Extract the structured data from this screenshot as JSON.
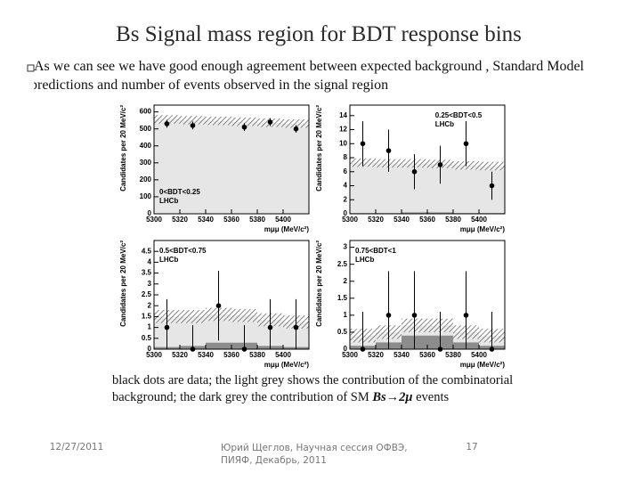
{
  "title": "Bs Signal mass region  for BDT response bins",
  "bullet": "As we can see  we have good enough agreement between expected background , Standard Model predictions and number of events observed in the signal region",
  "caption": {
    "text": "black dots are data; the light grey shows the contribution of the combinatorial background;  the dark grey  the contribution of SM ",
    "emph": "Bs→2μ",
    "end": "  events"
  },
  "footer": {
    "date": "12/27/2011",
    "author": "Юрий Щеглов, Научная сессия ОФВЭ, ПИЯФ, Декабрь, 2011",
    "page": "17"
  },
  "chart_data": [
    {
      "type": "mass",
      "label": "0<BDT<0.25",
      "experiment": "LHCb",
      "label_corner": "bottom-left",
      "x_label": "mμμ (MeV/c²)",
      "y_label": "Candidates per 20 MeV/c²",
      "x": [
        5310,
        5330,
        5350,
        5370,
        5390,
        5410
      ],
      "values": [
        530,
        520,
        null,
        510,
        540,
        500
      ],
      "errors": [
        23,
        23,
        null,
        23,
        23,
        22
      ],
      "background": [
        555,
        550,
        545,
        540,
        535,
        530
      ],
      "background_errors": [
        25,
        25,
        25,
        25,
        25,
        25
      ],
      "signal": [
        1,
        1,
        2,
        2,
        1,
        1
      ],
      "background_color": "#e6e6e6",
      "signal_color": "#8c8c8c",
      "xlim": [
        5300,
        5420
      ],
      "xticks": [
        5300,
        5320,
        5340,
        5360,
        5380,
        5400
      ],
      "ylim": [
        0,
        640
      ],
      "yticks": [
        0,
        100,
        200,
        300,
        400,
        500,
        600
      ]
    },
    {
      "type": "mass",
      "label": "0.25<BDT<0.5",
      "experiment": "LHCb",
      "label_corner": "top-right",
      "x_label": "mμμ (MeV/c²)",
      "y_label": "Candidates per 20 MeV/c²",
      "x": [
        5310,
        5330,
        5350,
        5370,
        5390,
        5410
      ],
      "values": [
        10,
        9,
        6,
        7,
        10,
        4
      ],
      "errors": [
        3.2,
        3,
        2.5,
        2.7,
        3.2,
        2
      ],
      "background": [
        7.2,
        7.1,
        7,
        6.9,
        6.8,
        6.7
      ],
      "background_errors": [
        0.6,
        0.6,
        0.6,
        0.6,
        0.6,
        0.6
      ],
      "signal": [
        0.1,
        0.1,
        0.2,
        0.2,
        0.1,
        0.1
      ],
      "background_color": "#e6e6e6",
      "signal_color": "#8c8c8c",
      "xlim": [
        5300,
        5420
      ],
      "xticks": [
        5300,
        5320,
        5340,
        5360,
        5380,
        5400
      ],
      "ylim": [
        0,
        15.5
      ],
      "yticks": [
        0,
        2,
        4,
        6,
        8,
        10,
        12,
        14
      ]
    },
    {
      "type": "mass",
      "label": "0.5<BDT<0.75",
      "experiment": "LHCb",
      "label_corner": "top-left",
      "x_label": "mμμ (MeV/c²)",
      "y_label": "Candidates per 20 MeV/c²",
      "x": [
        5310,
        5330,
        5350,
        5370,
        5390,
        5410
      ],
      "values": [
        1,
        0,
        2,
        0,
        1,
        1
      ],
      "errors": [
        1.3,
        1.1,
        1.6,
        1.1,
        1.3,
        1.3
      ],
      "background": [
        1.4,
        1.35,
        1.3,
        1.25,
        1.2,
        1.15
      ],
      "background_errors": [
        0.3,
        0.3,
        0.3,
        0.3,
        0.3,
        0.3
      ],
      "signal": [
        0.1,
        0.15,
        0.3,
        0.3,
        0.15,
        0.1
      ],
      "background_color": "#e6e6e6",
      "signal_color": "#8c8c8c",
      "xlim": [
        5300,
        5420
      ],
      "xticks": [
        5300,
        5320,
        5340,
        5360,
        5380,
        5400
      ],
      "ylim": [
        0,
        5
      ],
      "yticks": [
        0,
        0.5,
        1,
        1.5,
        2,
        2.5,
        3,
        3.5,
        4,
        4.5
      ]
    },
    {
      "type": "mass",
      "label": "0.75<BDT<1",
      "experiment": "LHCb",
      "label_corner": "top-left",
      "x_label": "mμμ (MeV/c²)",
      "y_label": "Candidates per 20 MeV/c²",
      "x": [
        5310,
        5330,
        5350,
        5370,
        5390,
        5410
      ],
      "values": [
        0,
        1,
        1,
        0,
        1,
        0
      ],
      "errors": [
        1.1,
        1.3,
        1.3,
        1.1,
        1.3,
        1.1
      ],
      "background": [
        0.3,
        0.3,
        0.3,
        0.3,
        0.3,
        0.3
      ],
      "background_errors": [
        0.2,
        0.2,
        0.2,
        0.2,
        0.2,
        0.2
      ],
      "signal": [
        0.1,
        0.2,
        0.4,
        0.4,
        0.2,
        0.1
      ],
      "background_color": "#e6e6e6",
      "signal_color": "#8c8c8c",
      "xlim": [
        5300,
        5420
      ],
      "xticks": [
        5300,
        5320,
        5340,
        5360,
        5380,
        5400
      ],
      "ylim": [
        0,
        3.2
      ],
      "yticks": [
        0,
        0.5,
        1,
        1.5,
        2,
        2.5,
        3
      ]
    }
  ]
}
